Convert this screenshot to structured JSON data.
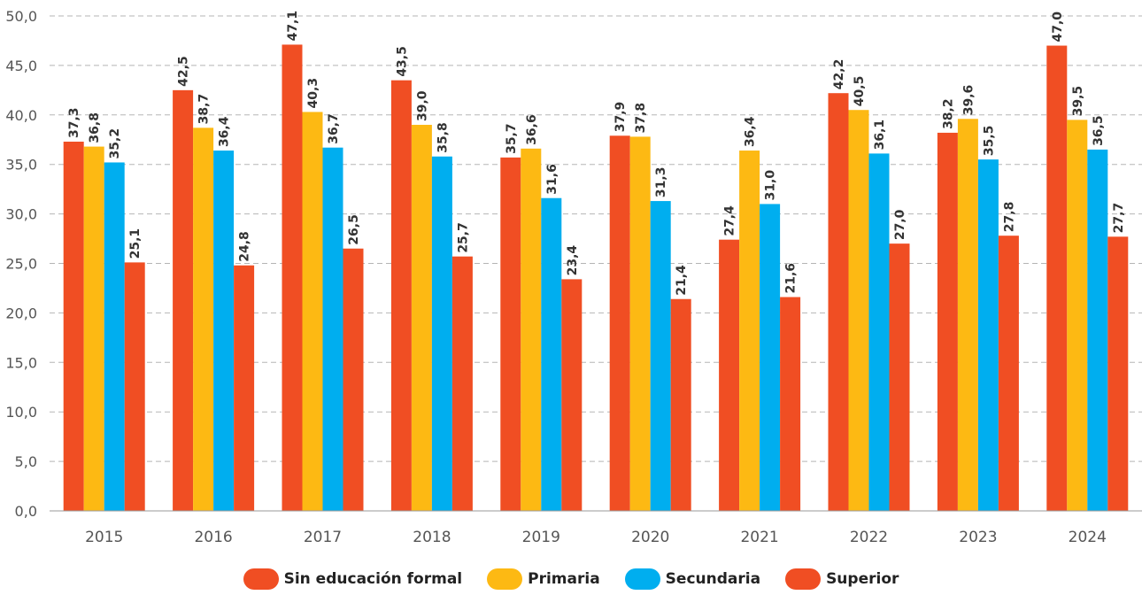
{
  "chart_data": {
    "type": "bar",
    "title": "",
    "xlabel": "",
    "ylabel": "",
    "ylim": [
      0,
      50
    ],
    "yticks": [
      "0,0",
      "5,0",
      "10,0",
      "15,0",
      "20,0",
      "25,0",
      "30,0",
      "35,0",
      "40,0",
      "45,0",
      "50,0"
    ],
    "ytick_values": [
      0,
      5,
      10,
      15,
      20,
      25,
      30,
      35,
      40,
      45,
      50
    ],
    "grid": "horizontal-dashed",
    "legend_position": "bottom",
    "categories": [
      "2015",
      "2016",
      "2017",
      "2018",
      "2019",
      "2020",
      "2021",
      "2022",
      "2023",
      "2024"
    ],
    "series": [
      {
        "name": "Sin educación formal",
        "color": "#f04e23",
        "values": [
          37.3,
          42.5,
          47.1,
          43.5,
          35.7,
          37.9,
          27.4,
          42.2,
          38.2,
          47.0
        ],
        "labels": [
          "37,3",
          "42,5",
          "47,1",
          "43,5",
          "35,7",
          "37,9",
          "27,4",
          "42,2",
          "38,2",
          "47,0"
        ]
      },
      {
        "name": "Primaria",
        "color": "#fdb913",
        "values": [
          36.8,
          38.7,
          40.3,
          39.0,
          36.6,
          37.8,
          36.4,
          40.5,
          39.6,
          39.5
        ],
        "labels": [
          "36,8",
          "38,7",
          "40,3",
          "39,0",
          "36,6",
          "37,8",
          "36,4",
          "40,5",
          "39,6",
          "39,5"
        ]
      },
      {
        "name": "Secundaria",
        "color": "#00aeef",
        "values": [
          35.2,
          36.4,
          36.7,
          35.8,
          31.6,
          31.3,
          31.0,
          36.1,
          35.5,
          36.5
        ],
        "labels": [
          "35,2",
          "36,4",
          "36,7",
          "35,8",
          "31,6",
          "31,3",
          "31,0",
          "36,1",
          "35,5",
          "36,5"
        ]
      },
      {
        "name": "Superior",
        "color": "#f04e23",
        "values": [
          25.1,
          24.8,
          26.5,
          25.7,
          23.4,
          21.4,
          21.6,
          27.0,
          27.8,
          27.7
        ],
        "labels": [
          "25,1",
          "24,8",
          "26,5",
          "25,7",
          "23,4",
          "21,4",
          "21,6",
          "27,0",
          "27,8",
          "27,7"
        ]
      }
    ]
  }
}
